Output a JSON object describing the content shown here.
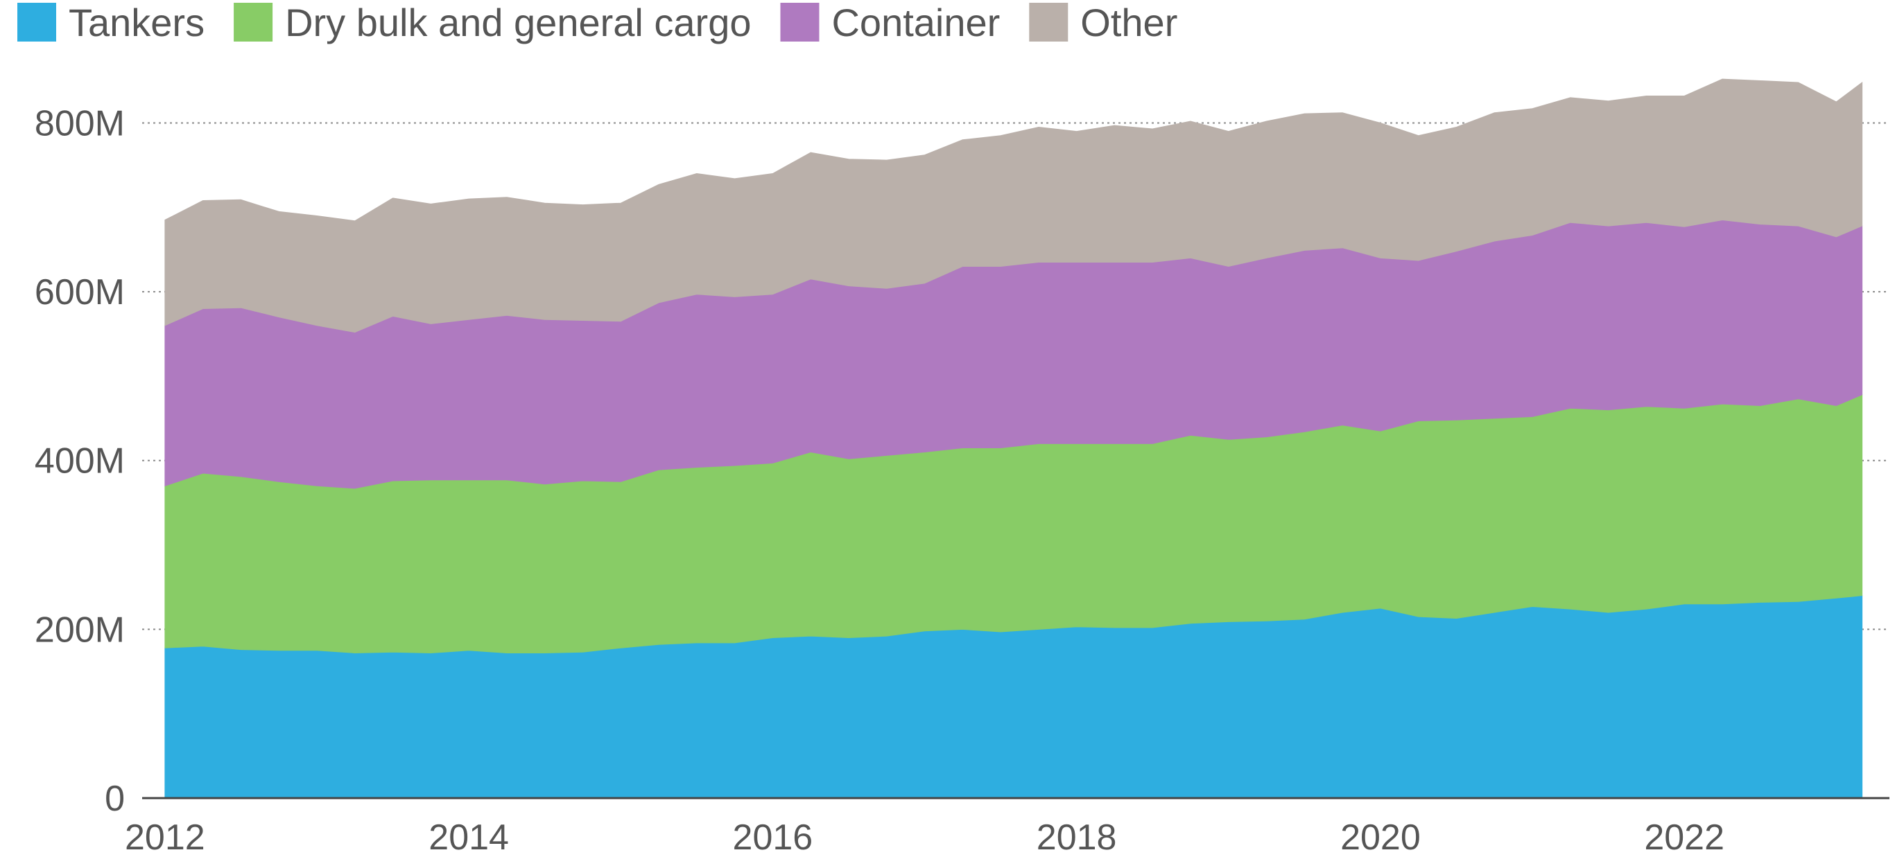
{
  "chart_data": {
    "type": "area",
    "stacked": true,
    "title": "",
    "xlabel": "",
    "ylabel": "",
    "xlim": [
      2011.85,
      2023.35
    ],
    "ylim": [
      0,
      880
    ],
    "grid": true,
    "legend": {
      "placement": "top-left"
    },
    "x_ticks": [
      {
        "value": 2012,
        "label": "2012"
      },
      {
        "value": 2014,
        "label": "2014"
      },
      {
        "value": 2016,
        "label": "2016"
      },
      {
        "value": 2018,
        "label": "2018"
      },
      {
        "value": 2020,
        "label": "2020"
      },
      {
        "value": 2022,
        "label": "2022"
      }
    ],
    "y_ticks": [
      {
        "value": 0,
        "label": "0"
      },
      {
        "value": 200,
        "label": "200M"
      },
      {
        "value": 400,
        "label": "400M"
      },
      {
        "value": 600,
        "label": "600M"
      },
      {
        "value": 800,
        "label": "800M"
      }
    ],
    "x": [
      2012.0,
      2012.25,
      2012.5,
      2012.75,
      2013.0,
      2013.25,
      2013.5,
      2013.75,
      2014.0,
      2014.25,
      2014.5,
      2014.75,
      2015.0,
      2015.25,
      2015.5,
      2015.75,
      2016.0,
      2016.25,
      2016.5,
      2016.75,
      2017.0,
      2017.25,
      2017.5,
      2017.75,
      2018.0,
      2018.25,
      2018.5,
      2018.75,
      2019.0,
      2019.25,
      2019.5,
      2019.75,
      2020.0,
      2020.25,
      2020.5,
      2020.75,
      2021.0,
      2021.25,
      2021.5,
      2021.75,
      2022.0,
      2022.25,
      2022.5,
      2022.75,
      2023.0,
      2023.17
    ],
    "series": [
      {
        "name": "Tankers",
        "color": "#2eaee0",
        "values": [
          178,
          180,
          176,
          175,
          175,
          172,
          173,
          172,
          175,
          172,
          172,
          173,
          178,
          182,
          184,
          184,
          190,
          192,
          190,
          192,
          198,
          200,
          197,
          200,
          203,
          202,
          202,
          207,
          209,
          210,
          212,
          220,
          225,
          215,
          213,
          220,
          227,
          224,
          220,
          224,
          230,
          230,
          232,
          233,
          237,
          240
        ]
      },
      {
        "name": "Dry bulk and general cargo",
        "color": "#88cc66",
        "values": [
          192,
          205,
          205,
          200,
          195,
          195,
          203,
          205,
          202,
          205,
          200,
          203,
          197,
          207,
          208,
          210,
          207,
          218,
          212,
          214,
          212,
          215,
          218,
          220,
          217,
          218,
          218,
          223,
          216,
          218,
          222,
          222,
          210,
          232,
          235,
          230,
          225,
          238,
          240,
          240,
          232,
          237,
          233,
          240,
          228,
          238
        ]
      },
      {
        "name": "Container",
        "color": "#af7ac0",
        "values": [
          190,
          195,
          200,
          195,
          190,
          185,
          195,
          185,
          190,
          195,
          195,
          190,
          190,
          198,
          205,
          200,
          200,
          205,
          205,
          198,
          200,
          215,
          215,
          215,
          215,
          215,
          215,
          210,
          205,
          212,
          215,
          210,
          205,
          190,
          200,
          210,
          215,
          220,
          218,
          218,
          215,
          218,
          215,
          205,
          200,
          200
        ]
      },
      {
        "name": "Other",
        "color": "#bab0aa",
        "values": [
          125,
          128,
          128,
          125,
          130,
          132,
          140,
          142,
          143,
          140,
          138,
          137,
          140,
          140,
          143,
          140,
          143,
          150,
          150,
          152,
          152,
          150,
          155,
          160,
          155,
          162,
          158,
          162,
          160,
          162,
          162,
          160,
          160,
          148,
          147,
          152,
          150,
          148,
          148,
          150,
          155,
          167,
          170,
          170,
          160,
          170
        ]
      }
    ]
  }
}
